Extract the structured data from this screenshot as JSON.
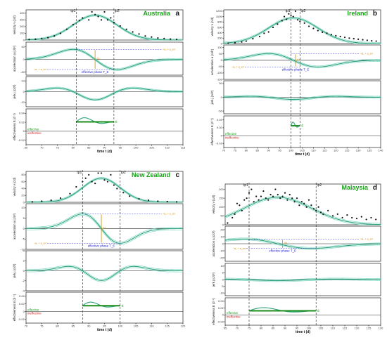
{
  "chart_data": [
    {
      "type": "line",
      "country": "Australia",
      "panel_letter": "a",
      "xlabel": "time t (d)",
      "x_ticks": [
        65,
        70,
        75,
        80,
        85,
        90,
        95,
        100,
        105,
        110,
        115
      ],
      "xlim": [
        65,
        115
      ],
      "tp1_label": "tp1",
      "tp2_label": "tp2",
      "tp1": 81,
      "tp2": 93,
      "velocity": {
        "ylabel": "velocity v (c/d)",
        "y_ticks": [
          0,
          100,
          200,
          300,
          400
        ],
        "ylim": [
          0,
          450
        ],
        "peak_day": 87,
        "peak": 370,
        "width": 7,
        "points": [
          [
            66,
            8
          ],
          [
            68,
            12
          ],
          [
            70,
            22
          ],
          [
            72,
            35
          ],
          [
            74,
            60
          ],
          [
            76,
            100
          ],
          [
            78,
            160
          ],
          [
            80,
            230
          ],
          [
            82,
            290
          ],
          [
            83,
            330
          ],
          [
            85,
            300
          ],
          [
            86,
            420
          ],
          [
            87,
            380
          ],
          [
            88,
            350
          ],
          [
            89,
            300
          ],
          [
            90,
            420
          ],
          [
            91,
            300
          ],
          [
            92,
            330
          ],
          [
            93,
            260
          ],
          [
            95,
            210
          ],
          [
            97,
            160
          ],
          [
            99,
            120
          ],
          [
            101,
            90
          ],
          [
            103,
            60
          ],
          [
            105,
            45
          ],
          [
            107,
            30
          ],
          [
            109,
            22
          ],
          [
            111,
            14
          ],
          [
            113,
            10
          ]
        ]
      },
      "acceleration": {
        "ylabel": "acceleration a (c/d²)",
        "y_ticks": [
          -40,
          0,
          40
        ],
        "ylim": [
          -50,
          55
        ]
      },
      "jerk": {
        "ylabel": "jerk j (c/d³)",
        "y_ticks": [
          -10,
          0,
          10
        ],
        "ylim": [
          -14,
          14
        ]
      },
      "effectiveness": {
        "ylabel": "effectiveness E (d⁻¹)",
        "y_ticks": [
          -0.02,
          0,
          0.02,
          0.04
        ],
        "ylim": [
          -0.03,
          0.05
        ],
        "E_bar": 0.021
      },
      "annotations": {
        "upper": "+a₀ + a_err",
        "lower": "−a₀ + a_err",
        "delta": "Δa",
        "phase": "effective phase T_E",
        "effective": "effective",
        "ineffective": "ineffective",
        "e_bar_label": "Ē"
      }
    },
    {
      "type": "line",
      "country": "Ireland",
      "panel_letter": "b",
      "xlabel": "time t (d)",
      "x_ticks": [
        70,
        75,
        80,
        85,
        90,
        95,
        100,
        105,
        110,
        115,
        120,
        125,
        130,
        135,
        140
      ],
      "xlim": [
        70,
        140
      ],
      "tp1_label": "tp1",
      "tp2_label": "tp2",
      "tp1": 100,
      "tp2": 104,
      "velocity": {
        "ylabel": "velocity v (c/d)",
        "y_ticks": [
          0,
          200,
          400,
          600,
          800,
          1000,
          1200
        ],
        "ylim": [
          0,
          1250
        ],
        "peak_day": 101,
        "peak": 950,
        "width": 11,
        "points": [
          [
            72,
            15
          ],
          [
            75,
            30
          ],
          [
            78,
            60
          ],
          [
            80,
            90
          ],
          [
            83,
            180
          ],
          [
            86,
            260
          ],
          [
            88,
            380
          ],
          [
            90,
            430
          ],
          [
            92,
            600
          ],
          [
            94,
            720
          ],
          [
            96,
            850
          ],
          [
            97,
            1000
          ],
          [
            98,
            900
          ],
          [
            99,
            1100
          ],
          [
            100,
            1050
          ],
          [
            101,
            1000
          ],
          [
            102,
            1200
          ],
          [
            103,
            880
          ],
          [
            104,
            820
          ],
          [
            106,
            760
          ],
          [
            108,
            640
          ],
          [
            110,
            560
          ],
          [
            112,
            480
          ],
          [
            114,
            420
          ],
          [
            116,
            380
          ],
          [
            118,
            330
          ],
          [
            120,
            290
          ],
          [
            122,
            260
          ],
          [
            124,
            230
          ],
          [
            126,
            200
          ],
          [
            128,
            180
          ],
          [
            130,
            160
          ],
          [
            132,
            140
          ],
          [
            134,
            120
          ],
          [
            136,
            100
          ],
          [
            138,
            90
          ]
        ]
      },
      "acceleration": {
        "ylabel": "acceleration a (c/d²)",
        "y_ticks": [
          -150,
          -100,
          -50,
          0,
          50,
          100
        ],
        "ylim": [
          -150,
          120
        ]
      },
      "jerk": {
        "ylabel": "jerk j (c/d³)",
        "y_ticks": [
          -50,
          0,
          50
        ],
        "ylim": [
          -60,
          60
        ]
      },
      "effectiveness": {
        "ylabel": "effectiveness E (d⁻¹)",
        "y_ticks": [
          -0.02,
          0,
          0.02,
          0.04
        ],
        "ylim": [
          -0.03,
          0.05
        ],
        "E_bar": 0.025
      },
      "annotations": {
        "upper": "+a₀ + a_err",
        "lower": "−a₀ + a_err",
        "delta": "Δa",
        "phase": "effective phase T_E",
        "effective": "effective",
        "ineffective": "ineffective",
        "e_bar_label": "Ē"
      }
    },
    {
      "type": "line",
      "country": "New Zealand",
      "panel_letter": "c",
      "xlabel": "time t (d)",
      "x_ticks": [
        70,
        75,
        80,
        85,
        90,
        95,
        100,
        105,
        110,
        115,
        120
      ],
      "xlim": [
        70,
        120
      ],
      "tp1_label": "tp1",
      "tp2_label": "tp2",
      "tp1": 88,
      "tp2": 100,
      "velocity": {
        "ylabel": "velocity v (c/d)",
        "y_ticks": [
          0,
          20,
          40,
          60,
          80
        ],
        "ylim": [
          0,
          90
        ],
        "peak_day": 94,
        "peak": 70,
        "width": 6,
        "points": [
          [
            72,
            1
          ],
          [
            75,
            3
          ],
          [
            78,
            6
          ],
          [
            81,
            12
          ],
          [
            84,
            25
          ],
          [
            86,
            45
          ],
          [
            88,
            60
          ],
          [
            89,
            70
          ],
          [
            90,
            80
          ],
          [
            91,
            60
          ],
          [
            92,
            55
          ],
          [
            93,
            85
          ],
          [
            94,
            85
          ],
          [
            95,
            65
          ],
          [
            96,
            60
          ],
          [
            97,
            80
          ],
          [
            98,
            50
          ],
          [
            99,
            40
          ],
          [
            101,
            28
          ],
          [
            103,
            18
          ],
          [
            106,
            10
          ],
          [
            109,
            6
          ],
          [
            112,
            3
          ],
          [
            115,
            2
          ],
          [
            118,
            1
          ]
        ]
      },
      "acceleration": {
        "ylabel": "acceleration a (c/d²)",
        "y_ticks": [
          -10,
          -5,
          0,
          5,
          10
        ],
        "ylim": [
          -10,
          12
        ]
      },
      "jerk": {
        "ylabel": "jerk j (c/d³)",
        "y_ticks": [
          -4,
          -2,
          0,
          2,
          4
        ],
        "ylim": [
          -4,
          4
        ]
      },
      "effectiveness": {
        "ylabel": "effectiveness E (d⁻¹)",
        "y_ticks": [
          -0.02,
          0,
          0.02,
          0.04
        ],
        "ylim": [
          -0.03,
          0.05
        ],
        "E_bar": 0.015
      },
      "annotations": {
        "upper": "+a₀ + a_err",
        "lower": "−a₀ + a_err",
        "delta": "Δa",
        "phase": "effective phase T_E",
        "effective": "effective",
        "ineffective": "ineffective",
        "e_bar_label": "Ē"
      }
    },
    {
      "type": "line",
      "country": "Malaysia",
      "panel_letter": "d",
      "xlabel": "time t (d)",
      "x_ticks": [
        65,
        70,
        75,
        80,
        85,
        90,
        95,
        100,
        105,
        110,
        115,
        120,
        125,
        130
      ],
      "xlim": [
        65,
        130
      ],
      "tp1_label": "tp1",
      "tp2_label": "tp2",
      "tp1": 75,
      "tp2": 103,
      "velocity": {
        "ylabel": "velocity v (c/d)",
        "y_ticks": [
          0,
          50,
          100,
          150,
          200
        ],
        "ylim": [
          0,
          230
        ],
        "peak_day": 87,
        "peak": 155,
        "width": 14,
        "points": [
          [
            66,
            10
          ],
          [
            68,
            40
          ],
          [
            69,
            60
          ],
          [
            70,
            120
          ],
          [
            71,
            110
          ],
          [
            72,
            80
          ],
          [
            73,
            140
          ],
          [
            74,
            150
          ],
          [
            75,
            180
          ],
          [
            76,
            200
          ],
          [
            77,
            130
          ],
          [
            78,
            160
          ],
          [
            79,
            140
          ],
          [
            80,
            160
          ],
          [
            81,
            190
          ],
          [
            82,
            150
          ],
          [
            83,
            140
          ],
          [
            84,
            170
          ],
          [
            85,
            160
          ],
          [
            86,
            200
          ],
          [
            87,
            170
          ],
          [
            88,
            150
          ],
          [
            89,
            160
          ],
          [
            90,
            180
          ],
          [
            91,
            140
          ],
          [
            92,
            170
          ],
          [
            93,
            150
          ],
          [
            94,
            130
          ],
          [
            95,
            150
          ],
          [
            96,
            110
          ],
          [
            97,
            130
          ],
          [
            98,
            120
          ],
          [
            99,
            100
          ],
          [
            100,
            140
          ],
          [
            101,
            110
          ],
          [
            102,
            90
          ],
          [
            103,
            80
          ],
          [
            104,
            100
          ],
          [
            105,
            70
          ],
          [
            106,
            60
          ],
          [
            108,
            80
          ],
          [
            110,
            50
          ],
          [
            112,
            60
          ],
          [
            114,
            40
          ],
          [
            116,
            55
          ],
          [
            118,
            40
          ],
          [
            120,
            35
          ],
          [
            122,
            45
          ],
          [
            124,
            30
          ],
          [
            126,
            40
          ],
          [
            128,
            30
          ]
        ]
      },
      "acceleration": {
        "ylabel": "acceleration a (c/d²)",
        "y_ticks": [
          -20,
          -10,
          0,
          10,
          20
        ],
        "ylim": [
          -25,
          25
        ]
      },
      "jerk": {
        "ylabel": "jerk j (c/d³)",
        "y_ticks": [
          -10,
          -5,
          0,
          5,
          10
        ],
        "ylim": [
          -12,
          12
        ]
      },
      "effectiveness": {
        "ylabel": "effectiveness E (d⁻¹)",
        "y_ticks": [
          -0.02,
          0,
          0.02,
          0.04
        ],
        "ylim": [
          -0.03,
          0.05
        ],
        "E_bar": 0.012
      },
      "annotations": {
        "upper": "+a₀ + a_err",
        "lower": "−a₀ + a_err",
        "delta": "Δa",
        "phase": "effective phase T_E",
        "effective": "effective",
        "ineffective": "ineffective",
        "e_bar_label": "Ē"
      }
    }
  ]
}
